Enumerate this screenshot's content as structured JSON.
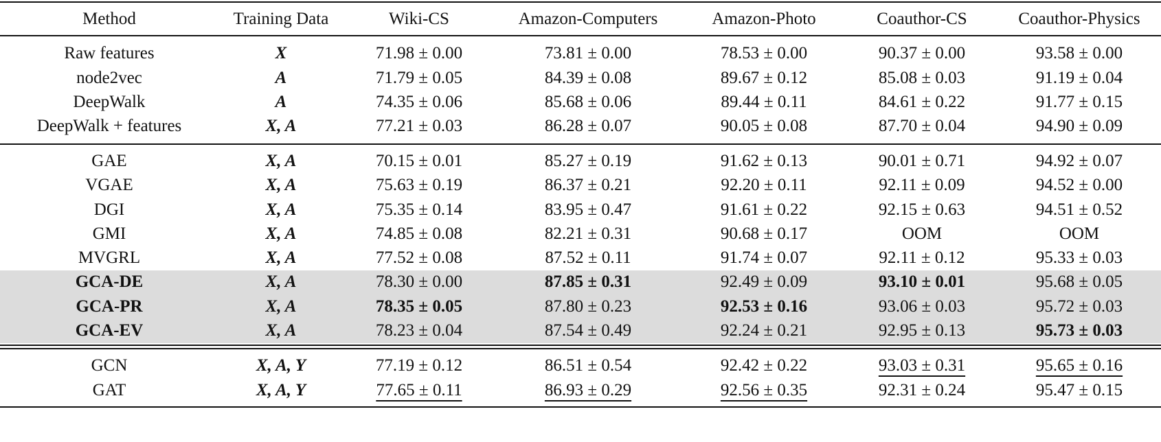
{
  "columns": [
    "Method",
    "Training Data",
    "Wiki-CS",
    "Amazon-Computers",
    "Amazon-Photo",
    "Coauthor-CS",
    "Coauthor-Physics"
  ],
  "rows": [
    {
      "method": "Raw features",
      "data": "X",
      "values": [
        "71.98 ± 0.00",
        "73.81 ± 0.00",
        "78.53 ± 0.00",
        "90.37 ± 0.00",
        "93.58 ± 0.00"
      ]
    },
    {
      "method": "node2vec",
      "data": "A",
      "values": [
        "71.79 ± 0.05",
        "84.39 ± 0.08",
        "89.67 ± 0.12",
        "85.08 ± 0.03",
        "91.19 ± 0.04"
      ]
    },
    {
      "method": "DeepWalk",
      "data": "A",
      "values": [
        "74.35 ± 0.06",
        "85.68 ± 0.06",
        "89.44 ± 0.11",
        "84.61 ± 0.22",
        "91.77 ± 0.15"
      ]
    },
    {
      "method": "DeepWalk + features",
      "data": "X, A",
      "values": [
        "77.21 ± 0.03",
        "86.28 ± 0.07",
        "90.05 ± 0.08",
        "87.70 ± 0.04",
        "94.90 ± 0.09"
      ]
    },
    {
      "method": "GAE",
      "data": "X, A",
      "values": [
        "70.15 ± 0.01",
        "85.27 ± 0.19",
        "91.62 ± 0.13",
        "90.01 ± 0.71",
        "94.92 ± 0.07"
      ]
    },
    {
      "method": "VGAE",
      "data": "X, A",
      "values": [
        "75.63 ± 0.19",
        "86.37 ± 0.21",
        "92.20 ± 0.11",
        "92.11 ± 0.09",
        "94.52 ± 0.00"
      ]
    },
    {
      "method": "DGI",
      "data": "X, A",
      "values": [
        "75.35 ± 0.14",
        "83.95 ± 0.47",
        "91.61 ± 0.22",
        "92.15 ± 0.63",
        "94.51 ± 0.52"
      ]
    },
    {
      "method": "GMI",
      "data": "X, A",
      "values": [
        "74.85 ± 0.08",
        "82.21 ± 0.31",
        "90.68 ± 0.17",
        "OOM",
        "OOM"
      ]
    },
    {
      "method": "MVGRL",
      "data": "X, A",
      "values": [
        "77.52 ± 0.08",
        "87.52 ± 0.11",
        "91.74 ± 0.07",
        "92.11 ± 0.12",
        "95.33 ± 0.03"
      ]
    },
    {
      "method": "GCA-DE",
      "data": "X, A",
      "values": [
        "78.30 ± 0.00",
        "87.85 ± 0.31",
        "92.49 ± 0.09",
        "93.10 ± 0.01",
        "95.68 ± 0.05"
      ]
    },
    {
      "method": "GCA-PR",
      "data": "X, A",
      "values": [
        "78.35 ± 0.05",
        "87.80 ± 0.23",
        "92.53 ± 0.16",
        "93.06 ± 0.03",
        "95.72 ± 0.03"
      ]
    },
    {
      "method": "GCA-EV",
      "data": "X, A",
      "values": [
        "78.23 ± 0.04",
        "87.54 ± 0.49",
        "92.24 ± 0.21",
        "92.95 ± 0.13",
        "95.73 ± 0.03"
      ]
    },
    {
      "method": "GCN",
      "data": "X, A, Y",
      "values": [
        "77.19 ± 0.12",
        "86.51 ± 0.54",
        "92.42 ± 0.22",
        "93.03 ± 0.31",
        "95.65 ± 0.16"
      ]
    },
    {
      "method": "GAT",
      "data": "X, A, Y",
      "values": [
        "77.65 ± 0.11",
        "86.93 ± 0.29",
        "92.56 ± 0.35",
        "92.31 ± 0.24",
        "95.47 ± 0.15"
      ]
    }
  ],
  "bold_methods": [
    "GCA-DE",
    "GCA-PR",
    "GCA-EV"
  ],
  "bold_cells": [
    [
      9,
      1
    ],
    [
      9,
      3
    ],
    [
      10,
      0
    ],
    [
      10,
      2
    ],
    [
      11,
      4
    ]
  ],
  "underlined_cells": [
    [
      12,
      3
    ],
    [
      12,
      4
    ],
    [
      13,
      0
    ],
    [
      13,
      1
    ],
    [
      13,
      2
    ]
  ],
  "highlight_color": "#dcdcdc"
}
